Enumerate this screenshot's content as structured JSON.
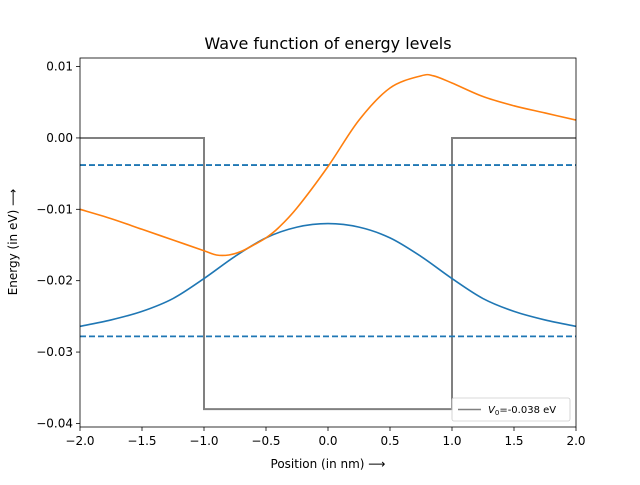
{
  "chart_data": {
    "type": "line",
    "title": "Wave function of energy levels",
    "xlabel": "Position (in nm)  ⟶",
    "ylabel": "Energy (in eV) ⟶",
    "xlim": [
      -2.0,
      2.0
    ],
    "ylim": [
      -0.0405,
      0.0112
    ],
    "xticks": [
      -2.0,
      -1.5,
      -1.0,
      -0.5,
      0.0,
      0.5,
      1.0,
      1.5,
      2.0
    ],
    "xtick_labels": [
      "−2.0",
      "−1.5",
      "−1.0",
      "−0.5",
      "0.0",
      "0.5",
      "1.0",
      "1.5",
      "2.0"
    ],
    "yticks": [
      0.01,
      0.0,
      -0.01,
      -0.02,
      -0.03,
      -0.04
    ],
    "ytick_labels": [
      "0.01",
      "0.00",
      "−0.01",
      "−0.02",
      "−0.03",
      "−0.04"
    ],
    "grid": false,
    "legend": {
      "placement": "lower right",
      "entries": [
        {
          "prefix": "V",
          "subscript": "0",
          "suffix": "=-0.038 eV",
          "color": "#808080"
        }
      ]
    },
    "potential_well": {
      "color": "#808080",
      "x": [
        -2.0,
        -1.0,
        -1.0,
        1.0,
        1.0,
        2.0
      ],
      "y": [
        0.0,
        0.0,
        -0.038,
        -0.038,
        0.0,
        0.0
      ]
    },
    "energy_levels": [
      {
        "energy": -0.0038,
        "color": "#1f77b4",
        "style": "dashed"
      },
      {
        "energy": -0.0278,
        "color": "#1f77b4",
        "style": "dashed"
      }
    ],
    "series": [
      {
        "color": "#1f77b4",
        "x": [
          -2.0,
          -1.75,
          -1.5,
          -1.25,
          -1.0,
          -0.75,
          -0.5,
          -0.25,
          0.0,
          0.25,
          0.5,
          0.75,
          1.0,
          1.25,
          1.5,
          1.75,
          2.0
        ],
        "y": [
          -0.0264,
          -0.0255,
          -0.0243,
          -0.0225,
          -0.0197,
          -0.0166,
          -0.014,
          -0.0125,
          -0.012,
          -0.0125,
          -0.014,
          -0.0166,
          -0.0197,
          -0.0225,
          -0.0243,
          -0.0255,
          -0.0264
        ]
      },
      {
        "color": "#ff7f0e",
        "x": [
          -2.0,
          -1.75,
          -1.5,
          -1.25,
          -1.0,
          -0.9,
          -0.8,
          -0.7,
          -0.6,
          -0.5,
          -0.4,
          -0.25,
          0.0,
          0.25,
          0.5,
          0.75,
          0.85,
          1.0,
          1.25,
          1.5,
          1.75,
          2.0
        ],
        "y": [
          -0.01,
          -0.0113,
          -0.0128,
          -0.0143,
          -0.0158,
          -0.0164,
          -0.0164,
          -0.0159,
          -0.015,
          -0.014,
          -0.0126,
          -0.0098,
          -0.004,
          0.0025,
          0.007,
          0.0087,
          0.0087,
          0.0077,
          0.0058,
          0.0045,
          0.0035,
          0.0025
        ]
      }
    ]
  }
}
